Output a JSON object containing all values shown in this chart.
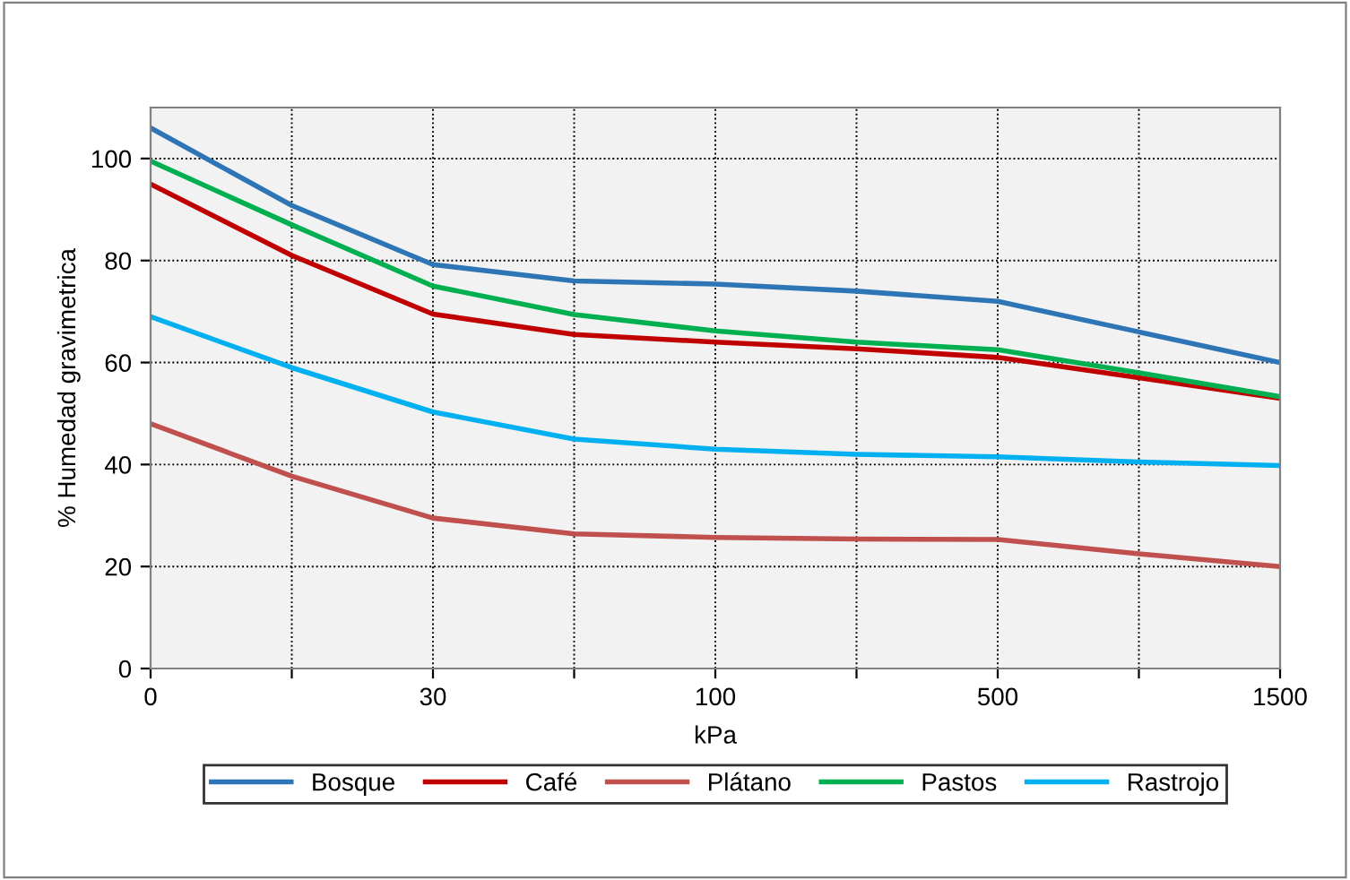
{
  "chart_data": {
    "type": "line",
    "xlabel": "kPa",
    "ylabel": "% Humedad gravimetrica",
    "categories": [
      "0",
      null,
      "30",
      null,
      "100",
      null,
      "500",
      null,
      "1500"
    ],
    "ylim": [
      0,
      110
    ],
    "yticks": [
      0,
      20,
      40,
      60,
      80,
      100
    ],
    "grid": true,
    "legend": "bottom",
    "marker": "none",
    "line_style": "solid",
    "series": [
      {
        "name": "Bosque",
        "color": "#2e75b6",
        "values": [
          106,
          90.8,
          79.2,
          76,
          75.4,
          74,
          72,
          66,
          60
        ]
      },
      {
        "name": "Café",
        "color": "#c00000",
        "values": [
          95,
          81,
          69.5,
          65.5,
          64,
          62.7,
          61,
          57,
          53
        ]
      },
      {
        "name": "Plátano",
        "color": "#c0504d",
        "values": [
          48,
          37.7,
          29.5,
          26.4,
          25.7,
          25.4,
          25.3,
          22.5,
          20
        ]
      },
      {
        "name": "Pastos",
        "color": "#00b050",
        "values": [
          99.5,
          87,
          75,
          69.4,
          66.2,
          64,
          62.5,
          58,
          53.3
        ]
      },
      {
        "name": "Rastrojo",
        "color": "#00b0f0",
        "values": [
          69,
          59,
          50.3,
          45,
          43,
          42,
          41.5,
          40.5,
          39.8
        ]
      }
    ]
  }
}
